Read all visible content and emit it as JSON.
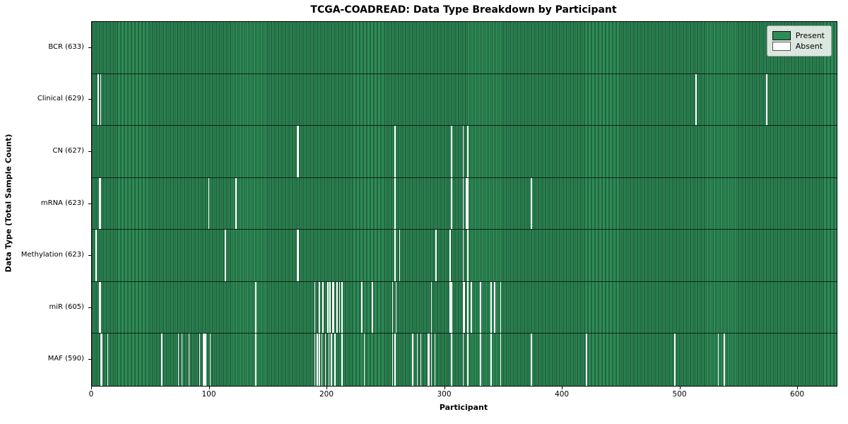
{
  "chart_data": {
    "type": "heatmap",
    "title": "TCGA-COADREAD: Data Type Breakdown by Participant",
    "xlabel": "Participant",
    "ylabel": "Data Type (Total Sample Count)",
    "legend_labels": [
      "Present",
      "Absent"
    ],
    "legend_position": "upper right",
    "grid": false,
    "x_ticks": [
      0,
      100,
      200,
      300,
      400,
      500,
      600
    ],
    "x_range": [
      0,
      633
    ],
    "n_participants": 633,
    "colors": {
      "present": "#2e8b57",
      "present_edge": "#17432a",
      "absent": "#ffffff",
      "row_separator": "#0c2115",
      "background": "#ffffff"
    },
    "rows": [
      {
        "label": "BCR (633)",
        "data_type": "BCR",
        "present_count": 633,
        "absent_count": 0,
        "absent_participants": []
      },
      {
        "label": "Clinical (629)",
        "data_type": "Clinical",
        "present_count": 629,
        "absent_count": 4,
        "absent_participants": [
          5,
          7,
          513,
          573
        ]
      },
      {
        "label": "CN (627)",
        "data_type": "CN",
        "present_count": 627,
        "absent_count": 6,
        "absent_participants": [
          174,
          175,
          257,
          305,
          315,
          319
        ]
      },
      {
        "label": "mRNA (623)",
        "data_type": "mRNA",
        "present_count": 623,
        "absent_count": 10,
        "absent_participants": [
          6,
          7,
          99,
          122,
          257,
          305,
          315,
          318,
          319,
          373
        ]
      },
      {
        "label": "Methylation (623)",
        "data_type": "Methylation",
        "present_count": 623,
        "absent_count": 10,
        "absent_participants": [
          3,
          113,
          174,
          175,
          257,
          261,
          292,
          304,
          315,
          319
        ]
      },
      {
        "label": "miR (605)",
        "data_type": "miR",
        "present_count": 605,
        "absent_count": 28,
        "absent_participants": [
          6,
          7,
          139,
          189,
          193,
          196,
          200,
          202,
          204,
          205,
          208,
          210,
          212,
          229,
          238,
          255,
          258,
          288,
          304,
          305,
          315,
          316,
          319,
          322,
          330,
          339,
          342,
          347
        ]
      },
      {
        "label": "MAF (590)",
        "data_type": "MAF",
        "present_count": 590,
        "absent_count": 43,
        "absent_participants": [
          7,
          8,
          13,
          59,
          73,
          76,
          82,
          91,
          94,
          95,
          96,
          100,
          139,
          189,
          191,
          193,
          195,
          198,
          201,
          203,
          206,
          212,
          231,
          255,
          257,
          272,
          276,
          279,
          285,
          286,
          288,
          291,
          305,
          315,
          319,
          330,
          339,
          347,
          373,
          420,
          495,
          532,
          537
        ]
      }
    ]
  }
}
